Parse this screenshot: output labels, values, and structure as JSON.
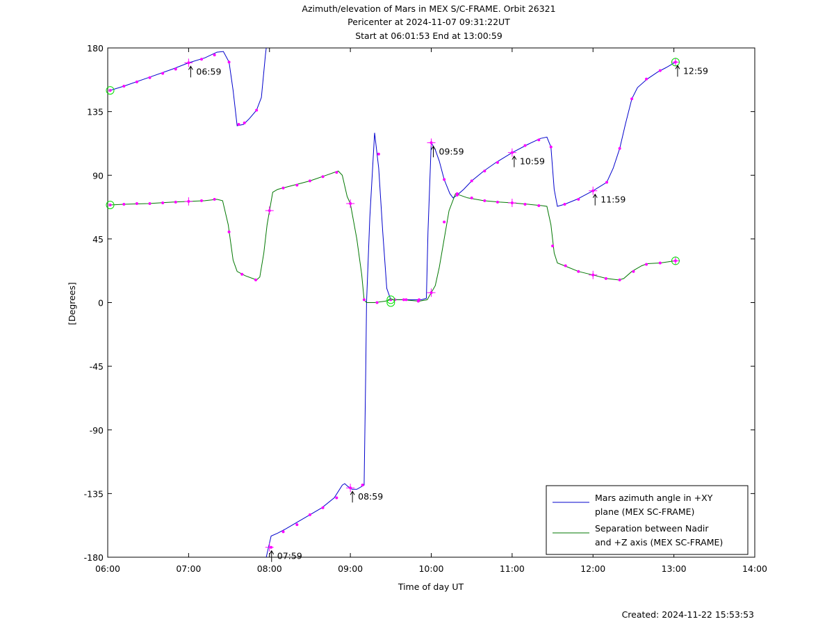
{
  "chart_data": {
    "type": "line",
    "title_lines": [
      "Azimuth/elevation of Mars in MEX S/C-FRAME.  Orbit 26321",
      "Pericenter at 2024-11-07 09:31:22UT",
      "Start at 06:01:53 End at 13:00:59"
    ],
    "xlabel": "Time of day UT",
    "ylabel": "[Degrees]",
    "xlim": [
      6.0,
      14.0
    ],
    "ylim": [
      -180,
      180
    ],
    "xticks": [
      {
        "value": 6,
        "label": "06:00"
      },
      {
        "value": 7,
        "label": "07:00"
      },
      {
        "value": 8,
        "label": "08:00"
      },
      {
        "value": 9,
        "label": "09:00"
      },
      {
        "value": 10,
        "label": "10:00"
      },
      {
        "value": 11,
        "label": "11:00"
      },
      {
        "value": 12,
        "label": "12:00"
      },
      {
        "value": 13,
        "label": "13:00"
      },
      {
        "value": 14,
        "label": "14:00"
      }
    ],
    "yticks": [
      {
        "value": 180,
        "label": "180"
      },
      {
        "value": 135,
        "label": "135"
      },
      {
        "value": 90,
        "label": "90"
      },
      {
        "value": 45,
        "label": "45"
      },
      {
        "value": 0,
        "label": "0"
      },
      {
        "value": -45,
        "label": "-45"
      },
      {
        "value": -90,
        "label": "-90"
      },
      {
        "value": -135,
        "label": "-135"
      },
      {
        "value": -180,
        "label": "-180"
      }
    ],
    "legend_position": "bottom-right",
    "series": [
      {
        "name_lines": [
          "Mars azimuth angle in +XY",
          "plane (MEX SC-FRAME)"
        ],
        "color": "#0000cc",
        "segments": [
          [
            [
              6.03,
              150
            ],
            [
              6.2,
              153
            ],
            [
              6.5,
              159
            ],
            [
              6.8,
              165
            ],
            [
              7.0,
              169.5
            ],
            [
              7.2,
              173
            ],
            [
              7.35,
              177
            ],
            [
              7.43,
              177.5
            ],
            [
              7.5,
              170
            ],
            [
              7.55,
              150
            ],
            [
              7.6,
              125
            ],
            [
              7.68,
              126
            ],
            [
              7.75,
              130
            ],
            [
              7.84,
              136
            ],
            [
              7.9,
              145
            ],
            [
              7.95,
              175
            ],
            [
              7.96,
              180
            ]
          ],
          [
            [
              7.96,
              -180
            ],
            [
              7.98,
              -175
            ],
            [
              8.02,
              -165
            ],
            [
              8.1,
              -163
            ],
            [
              8.2,
              -160
            ],
            [
              8.35,
              -155
            ],
            [
              8.5,
              -150
            ],
            [
              8.65,
              -145
            ],
            [
              8.8,
              -138
            ],
            [
              8.9,
              -129
            ],
            [
              8.93,
              -128
            ],
            [
              8.97,
              -130
            ],
            [
              9.02,
              -132
            ],
            [
              9.08,
              -132
            ],
            [
              9.17,
              -129
            ],
            [
              9.19,
              -50
            ],
            [
              9.2,
              0
            ],
            [
              9.24,
              60
            ],
            [
              9.3,
              120
            ],
            [
              9.35,
              95
            ],
            [
              9.4,
              50
            ],
            [
              9.45,
              10
            ],
            [
              9.5,
              2
            ],
            [
              9.6,
              2
            ],
            [
              9.75,
              2
            ],
            [
              9.88,
              2
            ],
            [
              9.94,
              3
            ],
            [
              9.96,
              50
            ],
            [
              10.0,
              113
            ],
            [
              10.05,
              108
            ],
            [
              10.1,
              100
            ],
            [
              10.16,
              87
            ],
            [
              10.23,
              77
            ],
            [
              10.27,
              74
            ],
            [
              10.32,
              76
            ],
            [
              10.4,
              80
            ],
            [
              10.5,
              86
            ],
            [
              10.65,
              93
            ],
            [
              10.8,
              99
            ],
            [
              11.0,
              106
            ],
            [
              11.2,
              112
            ],
            [
              11.35,
              116
            ],
            [
              11.43,
              117
            ],
            [
              11.48,
              110
            ],
            [
              11.52,
              80
            ],
            [
              11.56,
              68
            ],
            [
              11.65,
              69.5
            ],
            [
              11.8,
              73
            ],
            [
              12.0,
              79
            ],
            [
              12.17,
              85
            ],
            [
              12.25,
              95
            ],
            [
              12.33,
              109
            ],
            [
              12.4,
              126
            ],
            [
              12.48,
              144
            ],
            [
              12.55,
              152
            ],
            [
              12.67,
              158
            ],
            [
              12.8,
              163
            ],
            [
              12.9,
              166
            ],
            [
              13.02,
              170
            ]
          ]
        ],
        "markers": [
          [
            6.03,
            150
          ],
          [
            6.2,
            153
          ],
          [
            6.36,
            156
          ],
          [
            6.52,
            159
          ],
          [
            6.68,
            162
          ],
          [
            6.84,
            165
          ],
          [
            7.0,
            169.5
          ],
          [
            7.16,
            172
          ],
          [
            7.32,
            175
          ],
          [
            7.5,
            170
          ],
          [
            7.62,
            126
          ],
          [
            7.69,
            127
          ],
          [
            7.84,
            136
          ],
          [
            8.02,
            -173
          ],
          [
            8.17,
            -162
          ],
          [
            8.34,
            -157
          ],
          [
            8.5,
            -150
          ],
          [
            8.66,
            -145
          ],
          [
            8.83,
            -138
          ],
          [
            9.0,
            -131
          ],
          [
            9.15,
            -129
          ],
          [
            9.35,
            105
          ],
          [
            9.55,
            2
          ],
          [
            9.69,
            2
          ],
          [
            9.85,
            2
          ],
          [
            10.0,
            113
          ],
          [
            10.16,
            87
          ],
          [
            10.32,
            76
          ],
          [
            10.5,
            86
          ],
          [
            10.66,
            93
          ],
          [
            10.82,
            99
          ],
          [
            11.0,
            106
          ],
          [
            11.16,
            111
          ],
          [
            11.33,
            115
          ],
          [
            11.48,
            110
          ],
          [
            11.65,
            69.5
          ],
          [
            11.82,
            73
          ],
          [
            12.0,
            79
          ],
          [
            12.17,
            85
          ],
          [
            12.33,
            109
          ],
          [
            12.48,
            144
          ],
          [
            12.66,
            158
          ],
          [
            12.83,
            164
          ],
          [
            13.02,
            170
          ]
        ]
      },
      {
        "name_lines": [
          "Separation between Nadir",
          "and +Z axis (MEX SC-FRAME)"
        ],
        "color": "#007700",
        "segments": [
          [
            [
              6.03,
              69
            ],
            [
              6.2,
              69.5
            ],
            [
              6.5,
              70
            ],
            [
              6.8,
              71
            ],
            [
              7.0,
              71.5
            ],
            [
              7.2,
              72
            ],
            [
              7.35,
              73
            ],
            [
              7.42,
              72
            ],
            [
              7.49,
              55
            ],
            [
              7.55,
              30
            ],
            [
              7.6,
              22
            ],
            [
              7.7,
              19
            ],
            [
              7.84,
              16
            ],
            [
              7.88,
              18
            ],
            [
              7.93,
              35
            ],
            [
              7.97,
              55
            ],
            [
              8.0,
              65
            ],
            [
              8.04,
              78
            ],
            [
              8.1,
              80
            ],
            [
              8.3,
              83
            ],
            [
              8.5,
              86
            ],
            [
              8.7,
              90
            ],
            [
              8.85,
              93
            ],
            [
              8.9,
              90
            ],
            [
              8.96,
              75
            ],
            [
              9.0,
              70
            ],
            [
              9.08,
              45
            ],
            [
              9.14,
              20
            ],
            [
              9.17,
              2
            ],
            [
              9.2,
              0
            ],
            [
              9.3,
              0
            ],
            [
              9.43,
              1
            ],
            [
              9.5,
              2
            ],
            [
              9.65,
              2
            ],
            [
              9.85,
              1
            ],
            [
              9.95,
              2
            ],
            [
              10.0,
              7
            ],
            [
              10.05,
              12
            ],
            [
              10.1,
              25
            ],
            [
              10.16,
              45
            ],
            [
              10.22,
              65
            ],
            [
              10.3,
              77
            ],
            [
              10.45,
              74
            ],
            [
              10.65,
              72
            ],
            [
              10.85,
              71
            ],
            [
              11.0,
              70.5
            ],
            [
              11.2,
              69.5
            ],
            [
              11.37,
              68.5
            ],
            [
              11.43,
              68
            ],
            [
              11.48,
              55
            ],
            [
              11.52,
              35
            ],
            [
              11.56,
              28
            ],
            [
              11.65,
              26
            ],
            [
              11.82,
              22
            ],
            [
              12.0,
              19.5
            ],
            [
              12.17,
              17
            ],
            [
              12.32,
              16
            ],
            [
              12.38,
              17
            ],
            [
              12.48,
              22
            ],
            [
              12.6,
              26
            ],
            [
              12.67,
              27.5
            ],
            [
              12.83,
              28
            ],
            [
              12.95,
              29
            ],
            [
              13.02,
              29.5
            ]
          ]
        ],
        "markers": [
          [
            6.03,
            69
          ],
          [
            6.2,
            69.5
          ],
          [
            6.36,
            70
          ],
          [
            6.52,
            70
          ],
          [
            6.68,
            70.5
          ],
          [
            6.84,
            71
          ],
          [
            7.0,
            71.5
          ],
          [
            7.16,
            72
          ],
          [
            7.32,
            73
          ],
          [
            7.5,
            50
          ],
          [
            7.66,
            20
          ],
          [
            7.83,
            16
          ],
          [
            8.0,
            65
          ],
          [
            8.17,
            81
          ],
          [
            8.34,
            83
          ],
          [
            8.5,
            86
          ],
          [
            8.66,
            89
          ],
          [
            8.83,
            92
          ],
          [
            9.0,
            70
          ],
          [
            9.17,
            2
          ],
          [
            9.33,
            0
          ],
          [
            9.5,
            2
          ],
          [
            9.66,
            2
          ],
          [
            9.84,
            1
          ],
          [
            10.0,
            7
          ],
          [
            10.16,
            57
          ],
          [
            10.32,
            77
          ],
          [
            10.5,
            74
          ],
          [
            10.66,
            72
          ],
          [
            10.82,
            71
          ],
          [
            11.0,
            70.5
          ],
          [
            11.16,
            69.5
          ],
          [
            11.33,
            68.5
          ],
          [
            11.5,
            40
          ],
          [
            11.66,
            26
          ],
          [
            11.82,
            22
          ],
          [
            12.0,
            19.5
          ],
          [
            12.16,
            17
          ],
          [
            12.33,
            16
          ],
          [
            12.5,
            22
          ],
          [
            12.66,
            27
          ],
          [
            12.83,
            28
          ],
          [
            13.02,
            29.5
          ]
        ]
      }
    ],
    "crosses": [
      [
        7.0,
        169.5
      ],
      [
        7.0,
        71.5
      ],
      [
        8.0,
        65
      ],
      [
        8.0,
        -173
      ],
      [
        9.0,
        70
      ],
      [
        9.0,
        -131
      ],
      [
        10.0,
        113
      ],
      [
        10.0,
        7
      ],
      [
        11.0,
        106
      ],
      [
        11.0,
        70.5
      ],
      [
        12.0,
        79
      ],
      [
        12.0,
        19.5
      ],
      [
        13.02,
        170
      ],
      [
        13.02,
        29.5
      ]
    ],
    "circles": [
      [
        6.03,
        150
      ],
      [
        6.03,
        69
      ],
      [
        9.5,
        2
      ],
      [
        9.5,
        0
      ],
      [
        13.02,
        170
      ],
      [
        13.02,
        29.5
      ]
    ],
    "annotations": [
      {
        "x": 7.0,
        "y": 169.5,
        "label": "06:59"
      },
      {
        "x": 8.0,
        "y": -173,
        "label": "07:59"
      },
      {
        "x": 9.0,
        "y": -131,
        "label": "08:59"
      },
      {
        "x": 10.0,
        "y": 113,
        "label": "09:59"
      },
      {
        "x": 11.0,
        "y": 106,
        "label": "10:59"
      },
      {
        "x": 12.0,
        "y": 79,
        "label": "11:59"
      },
      {
        "x": 13.02,
        "y": 170,
        "label": "12:59"
      }
    ],
    "marker_color": "#ff00ff",
    "circle_color": "#00dd00"
  },
  "footer": {
    "created": "Created: 2024-11-22 15:53:53"
  }
}
